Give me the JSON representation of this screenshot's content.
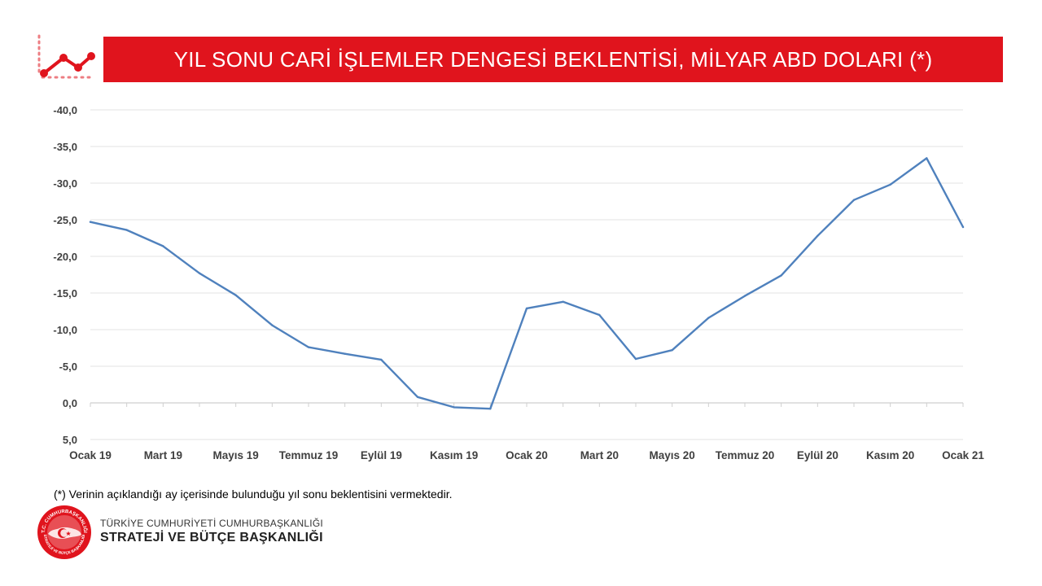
{
  "header": {
    "title": "YIL SONU CARİ İŞLEMLER DENGESİ BEKLENTİSİ, MİLYAR ABD DOLARI (*)",
    "bar_color": "#e0141d",
    "icon": "trend-line-chart-icon"
  },
  "chart_data": {
    "type": "line",
    "title": "YIL SONU CARİ İŞLEMLER DENGESİ BEKLENTİSİ, MİLYAR ABD DOLARI (*)",
    "xlabel": "",
    "ylabel": "",
    "ylim": [
      5.0,
      -40.0
    ],
    "y_axis_inverted": true,
    "y_ticks": [
      "-40,0",
      "-35,0",
      "-30,0",
      "-25,0",
      "-20,0",
      "-15,0",
      "-10,0",
      "-5,0",
      "0,0",
      "5,0"
    ],
    "x_ticks": [
      "Ocak 19",
      "Mart 19",
      "Mayıs 19",
      "Temmuz 19",
      "Eylül 19",
      "Kasım 19",
      "Ocak 20",
      "Mart 20",
      "Mayıs 20",
      "Temmuz 20",
      "Eylül 20",
      "Kasım 20",
      "Ocak 21"
    ],
    "grid": true,
    "legend": "none",
    "series_color": "#4f81bd",
    "series": [
      {
        "values": [
          -24.7,
          -23.6,
          -21.4,
          -17.7,
          -14.7,
          -10.6,
          -7.6,
          -6.7,
          -5.9,
          -0.8,
          0.6,
          0.8,
          -12.9,
          -13.8,
          -12.0,
          -6.0,
          -7.2,
          -11.6,
          -14.6,
          -17.4,
          -22.8,
          -27.7,
          -29.8,
          -33.4,
          -24.0
        ]
      }
    ]
  },
  "footnote": "(*) Verinin açıklandığı ay içerisinde bulunduğu yıl sonu beklentisini vermektedir.",
  "footer": {
    "org_line1": "TÜRKİYE CUMHURİYETİ CUMHURBAŞKANLIĞI",
    "org_line2": "STRATEJİ VE BÜTÇE BAŞKANLIĞI",
    "logo_icon": "presidency-seal-icon",
    "logo_text_top": "T.C. CUMHURBAŞKANLIĞI",
    "logo_text_bottom": "STRATEJİ VE BÜTÇE BAŞKANLIĞI"
  }
}
